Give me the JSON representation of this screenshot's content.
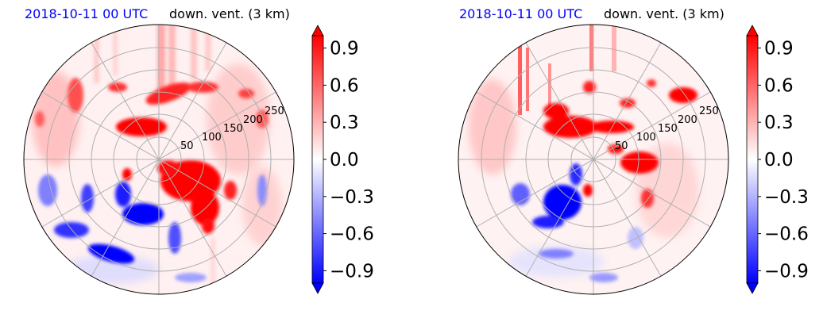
{
  "chart_data": [
    {
      "type": "heatmap",
      "projection": "polar",
      "title_left": "2018-10-11 00 UTC",
      "title_right": "down. vent. (3 km)",
      "radial_ticks": [
        50,
        100,
        150,
        200,
        250
      ],
      "radial_grid": true,
      "angular_grid_deg": 30,
      "colorbar": {
        "cmap": "bwr",
        "ticks": [
          "0.9",
          "0.6",
          "0.3",
          "0.0",
          "−0.3",
          "−0.6",
          "−0.9"
        ],
        "range": [
          -1.0,
          1.0
        ],
        "levels": 20,
        "extend": "both"
      },
      "features": [
        {
          "sign": "positive",
          "region": "east-southeast of center"
        },
        {
          "sign": "positive",
          "region": "north, 100-200 km arc"
        },
        {
          "sign": "negative",
          "region": "southwest quadrant"
        }
      ]
    },
    {
      "type": "heatmap",
      "projection": "polar",
      "title_left": "2018-10-11 00 UTC",
      "title_right": "down. vent. (3 km)",
      "radial_ticks": [
        50,
        100,
        150,
        200,
        250
      ],
      "radial_grid": true,
      "angular_grid_deg": 30,
      "colorbar": {
        "cmap": "bwr",
        "ticks": [
          "0.9",
          "0.6",
          "0.3",
          "0.0",
          "−0.3",
          "−0.6",
          "−0.9"
        ],
        "range": [
          -1.0,
          1.0
        ],
        "levels": 20,
        "extend": "both"
      },
      "features": [
        {
          "sign": "positive",
          "region": "north and northeast, 50-150 km"
        },
        {
          "sign": "positive",
          "region": "east of center"
        },
        {
          "sign": "negative",
          "region": "southwest quadrant"
        }
      ]
    }
  ],
  "colors": {
    "positive": "#ff0000",
    "negative": "#0000ff",
    "grid": "#b0b0b0",
    "title_date": "#0000ff",
    "title_field": "#000000"
  }
}
